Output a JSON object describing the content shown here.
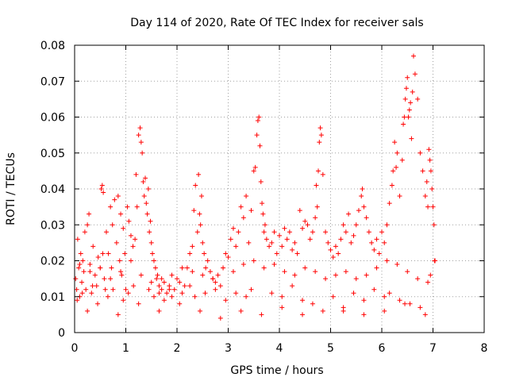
{
  "chart_data": {
    "type": "scatter",
    "title": "Day 114 of 2020, Rate Of TEC Index for receiver sals",
    "xlabel": "GPS time / hours",
    "ylabel": "ROTI / TECUs",
    "xlim": [
      0,
      8
    ],
    "ylim": [
      0,
      0.08
    ],
    "xticks": [
      0,
      1,
      2,
      3,
      4,
      5,
      6,
      7,
      8
    ],
    "xtick_labels": [
      "0",
      "1",
      "2",
      "3",
      "4",
      "5",
      "6",
      "7",
      "8"
    ],
    "yticks": [
      0,
      0.01,
      0.02,
      0.03,
      0.04,
      0.05,
      0.06,
      0.07,
      0.08
    ],
    "ytick_labels": [
      "0",
      "0.01",
      "0.02",
      "0.03",
      "0.04",
      "0.05",
      "0.06",
      "0.07",
      "0.08"
    ],
    "grid": true,
    "marker": "+",
    "color": "#ff0000",
    "series": [
      {
        "name": "ROTI",
        "x": [
          0.02,
          0.04,
          0.06,
          0.08,
          0.1,
          0.12,
          0.14,
          0.16,
          0.18,
          0.2,
          0.22,
          0.25,
          0.28,
          0.3,
          0.33,
          0.36,
          0.4,
          0.43,
          0.46,
          0.5,
          0.52,
          0.54,
          0.56,
          0.58,
          0.6,
          0.62,
          0.66,
          0.7,
          0.72,
          0.74,
          0.78,
          0.82,
          0.85,
          0.88,
          0.9,
          0.92,
          0.95,
          0.98,
          1.0,
          1.03,
          1.06,
          1.1,
          1.14,
          1.18,
          1.2,
          1.22,
          1.25,
          1.28,
          1.3,
          1.32,
          1.34,
          1.36,
          1.38,
          1.4,
          1.42,
          1.44,
          1.46,
          1.48,
          1.5,
          1.52,
          1.55,
          1.58,
          1.6,
          1.62,
          1.65,
          1.7,
          1.75,
          1.8,
          1.85,
          1.9,
          1.95,
          2.0,
          2.05,
          2.1,
          2.15,
          2.2,
          2.25,
          2.3,
          2.33,
          2.36,
          2.4,
          2.42,
          2.44,
          2.46,
          2.48,
          2.5,
          2.53,
          2.56,
          2.6,
          2.65,
          2.7,
          2.75,
          2.8,
          2.85,
          2.9,
          2.95,
          3.0,
          3.05,
          3.1,
          3.15,
          3.2,
          3.25,
          3.3,
          3.35,
          3.4,
          3.45,
          3.5,
          3.53,
          3.56,
          3.58,
          3.6,
          3.62,
          3.64,
          3.66,
          3.68,
          3.7,
          3.72,
          3.75,
          3.8,
          3.85,
          3.9,
          3.95,
          4.0,
          4.05,
          4.1,
          4.15,
          4.2,
          4.25,
          4.3,
          4.35,
          4.4,
          4.45,
          4.5,
          4.55,
          4.6,
          4.65,
          4.7,
          4.72,
          4.74,
          4.76,
          4.78,
          4.8,
          4.82,
          4.85,
          4.9,
          4.95,
          5.0,
          5.05,
          5.1,
          5.15,
          5.2,
          5.25,
          5.3,
          5.35,
          5.4,
          5.45,
          5.5,
          5.55,
          5.6,
          5.62,
          5.65,
          5.7,
          5.75,
          5.8,
          5.85,
          5.9,
          5.95,
          6.0,
          6.05,
          6.1,
          6.15,
          6.2,
          6.22,
          6.25,
          6.28,
          6.3,
          6.35,
          6.4,
          6.42,
          6.44,
          6.46,
          6.48,
          6.5,
          6.52,
          6.54,
          6.56,
          6.58,
          6.6,
          6.62,
          6.65,
          6.7,
          6.75,
          6.8,
          6.85,
          6.88,
          6.9,
          6.92,
          6.94,
          6.96,
          6.98,
          7.0,
          7.02,
          7.04,
          0.05,
          0.15,
          0.35,
          0.45,
          0.65,
          0.75,
          0.95,
          1.05,
          1.15,
          1.45,
          1.55,
          1.65,
          1.75,
          1.85,
          2.25,
          2.35,
          2.55,
          2.75,
          2.95,
          3.15,
          3.35,
          3.45,
          3.85,
          4.05,
          4.25,
          4.45,
          4.65,
          5.05,
          5.25,
          5.45,
          5.65,
          5.85,
          6.05,
          6.15,
          6.35,
          6.55,
          6.75,
          6.95,
          0.1,
          0.3,
          0.5,
          0.7,
          0.9,
          1.1,
          1.3,
          1.5,
          1.7,
          1.9,
          2.1,
          2.3,
          2.5,
          2.7,
          2.9,
          3.1,
          3.3,
          3.5,
          3.7,
          3.9,
          4.1,
          4.3,
          4.5,
          4.7,
          4.9,
          5.1,
          5.3,
          5.5,
          5.7,
          5.9,
          6.1,
          6.3,
          6.5,
          6.7,
          6.9,
          7.03,
          0.25,
          0.55,
          0.85,
          1.25,
          1.65,
          2.05,
          2.45,
          2.85,
          3.25,
          3.65,
          4.05,
          4.45,
          4.85,
          5.25,
          5.65,
          6.05,
          6.45,
          6.85
        ],
        "y": [
          0.015,
          0.012,
          0.026,
          0.018,
          0.01,
          0.022,
          0.014,
          0.02,
          0.017,
          0.028,
          0.012,
          0.03,
          0.033,
          0.019,
          0.011,
          0.024,
          0.016,
          0.013,
          0.021,
          0.018,
          0.04,
          0.041,
          0.039,
          0.015,
          0.012,
          0.028,
          0.022,
          0.035,
          0.018,
          0.03,
          0.037,
          0.025,
          0.038,
          0.02,
          0.033,
          0.016,
          0.029,
          0.022,
          0.012,
          0.035,
          0.031,
          0.027,
          0.024,
          0.026,
          0.044,
          0.035,
          0.055,
          0.057,
          0.053,
          0.05,
          0.042,
          0.038,
          0.043,
          0.036,
          0.033,
          0.04,
          0.028,
          0.031,
          0.025,
          0.022,
          0.02,
          0.018,
          0.015,
          0.016,
          0.013,
          0.012,
          0.014,
          0.011,
          0.013,
          0.01,
          0.012,
          0.015,
          0.014,
          0.011,
          0.013,
          0.018,
          0.022,
          0.024,
          0.034,
          0.041,
          0.028,
          0.044,
          0.033,
          0.03,
          0.038,
          0.025,
          0.022,
          0.018,
          0.02,
          0.017,
          0.015,
          0.014,
          0.016,
          0.013,
          0.018,
          0.022,
          0.021,
          0.026,
          0.029,
          0.024,
          0.028,
          0.035,
          0.032,
          0.038,
          0.025,
          0.034,
          0.045,
          0.046,
          0.055,
          0.059,
          0.06,
          0.052,
          0.042,
          0.036,
          0.033,
          0.028,
          0.03,
          0.026,
          0.024,
          0.025,
          0.028,
          0.022,
          0.027,
          0.024,
          0.029,
          0.026,
          0.028,
          0.023,
          0.025,
          0.022,
          0.034,
          0.029,
          0.031,
          0.03,
          0.026,
          0.028,
          0.032,
          0.041,
          0.035,
          0.045,
          0.053,
          0.057,
          0.055,
          0.044,
          0.028,
          0.025,
          0.023,
          0.021,
          0.024,
          0.022,
          0.026,
          0.03,
          0.028,
          0.033,
          0.025,
          0.027,
          0.03,
          0.034,
          0.038,
          0.04,
          0.035,
          0.032,
          0.028,
          0.025,
          0.023,
          0.026,
          0.022,
          0.028,
          0.025,
          0.03,
          0.036,
          0.041,
          0.045,
          0.053,
          0.046,
          0.05,
          0.038,
          0.048,
          0.058,
          0.06,
          0.065,
          0.068,
          0.071,
          0.06,
          0.062,
          0.064,
          0.054,
          0.067,
          0.077,
          0.072,
          0.065,
          0.05,
          0.045,
          0.038,
          0.042,
          0.035,
          0.051,
          0.048,
          0.045,
          0.04,
          0.035,
          0.03,
          0.02,
          0.009,
          0.011,
          0.013,
          0.008,
          0.01,
          0.012,
          0.009,
          0.011,
          0.013,
          0.012,
          0.01,
          0.011,
          0.009,
          0.012,
          0.013,
          0.01,
          0.011,
          0.012,
          0.009,
          0.011,
          0.01,
          0.012,
          0.011,
          0.01,
          0.013,
          0.009,
          0.008,
          0.01,
          0.006,
          0.011,
          0.009,
          0.012,
          0.01,
          0.011,
          0.009,
          0.008,
          0.007,
          0.016,
          0.019,
          0.017,
          0.018,
          0.015,
          0.017,
          0.02,
          0.016,
          0.014,
          0.015,
          0.016,
          0.018,
          0.017,
          0.016,
          0.015,
          0.018,
          0.017,
          0.019,
          0.02,
          0.018,
          0.019,
          0.017,
          0.016,
          0.018,
          0.017,
          0.015,
          0.016,
          0.017,
          0.015,
          0.016,
          0.018,
          0.02,
          0.019,
          0.017,
          0.015,
          0.014,
          0.02,
          0.006,
          0.022,
          0.005,
          0.008,
          0.006,
          0.008,
          0.006,
          0.004,
          0.006,
          0.005,
          0.007,
          0.005,
          0.006,
          0.007,
          0.005,
          0.006,
          0.008,
          0.005
        ]
      }
    ]
  }
}
